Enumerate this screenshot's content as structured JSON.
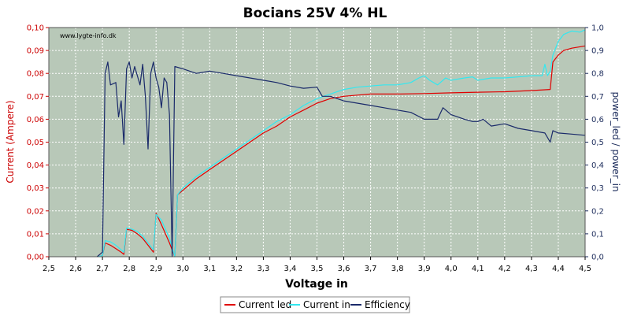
{
  "chart_data": {
    "type": "line",
    "title": "Bocians 25V 4% HL",
    "watermark": "www.lygte-info.dk",
    "xlabel": "Voltage in",
    "ylabel_left": "Current (Ampere)",
    "ylabel_right": "power_led / power_in",
    "xlim": [
      2.5,
      4.5
    ],
    "ylim_left": [
      0,
      0.1
    ],
    "ylim_right": [
      0,
      1
    ],
    "x_ticks": [
      "2,5",
      "2,6",
      "2,7",
      "2,8",
      "2,9",
      "3,0",
      "3,1",
      "3,2",
      "3,3",
      "3,4",
      "3,5",
      "3,6",
      "3,7",
      "3,8",
      "3,9",
      "4,0",
      "4,1",
      "4,2",
      "4,3",
      "4,4",
      "4,5"
    ],
    "y_left_ticks": [
      "0,00",
      "0,01",
      "0,02",
      "0,03",
      "0,04",
      "0,05",
      "0,06",
      "0,07",
      "0,08",
      "0,09",
      "0,10"
    ],
    "y_right_ticks": [
      "0,0",
      "0,1",
      "0,2",
      "0,3",
      "0,4",
      "0,5",
      "0,6",
      "0,7",
      "0,8",
      "0,9",
      "1,0"
    ],
    "grid": true,
    "legend_position": "bottom",
    "colors": {
      "plot_bg": "#b8c8b8",
      "grid": "#ffffff",
      "left_axis": "#cc0000",
      "right_axis": "#1a2a5a",
      "current_led": "#e00000",
      "current_in": "#33e8f0",
      "efficiency": "#1a2a6a"
    },
    "series": [
      {
        "name": "Current led",
        "axis": "left",
        "color": "#e00000",
        "points": [
          [
            2.68,
            0.0
          ],
          [
            2.7,
            0.0005
          ],
          [
            2.71,
            0.006
          ],
          [
            2.73,
            0.005
          ],
          [
            2.75,
            0.0035
          ],
          [
            2.77,
            0.002
          ],
          [
            2.78,
            0.001
          ],
          [
            2.79,
            0.012
          ],
          [
            2.81,
            0.0115
          ],
          [
            2.83,
            0.01
          ],
          [
            2.85,
            0.008
          ],
          [
            2.87,
            0.005
          ],
          [
            2.89,
            0.002
          ],
          [
            2.9,
            0.019
          ],
          [
            2.92,
            0.014
          ],
          [
            2.95,
            0.006
          ],
          [
            2.97,
            0.0
          ],
          [
            2.98,
            0.027
          ],
          [
            3.0,
            0.029
          ],
          [
            3.05,
            0.034
          ],
          [
            3.1,
            0.038
          ],
          [
            3.15,
            0.042
          ],
          [
            3.2,
            0.046
          ],
          [
            3.25,
            0.05
          ],
          [
            3.3,
            0.054
          ],
          [
            3.35,
            0.057
          ],
          [
            3.4,
            0.061
          ],
          [
            3.45,
            0.064
          ],
          [
            3.5,
            0.067
          ],
          [
            3.55,
            0.069
          ],
          [
            3.6,
            0.07
          ],
          [
            3.65,
            0.0705
          ],
          [
            3.7,
            0.071
          ],
          [
            3.8,
            0.071
          ],
          [
            3.9,
            0.0712
          ],
          [
            4.0,
            0.0715
          ],
          [
            4.1,
            0.0718
          ],
          [
            4.2,
            0.072
          ],
          [
            4.3,
            0.0725
          ],
          [
            4.37,
            0.073
          ],
          [
            4.38,
            0.085
          ],
          [
            4.4,
            0.088
          ],
          [
            4.42,
            0.09
          ],
          [
            4.45,
            0.091
          ],
          [
            4.5,
            0.092
          ]
        ]
      },
      {
        "name": "Current in",
        "axis": "left",
        "color": "#33e8f0",
        "points": [
          [
            2.68,
            0.0
          ],
          [
            2.7,
            0.0005
          ],
          [
            2.71,
            0.007
          ],
          [
            2.73,
            0.0065
          ],
          [
            2.75,
            0.005
          ],
          [
            2.77,
            0.003
          ],
          [
            2.78,
            0.002
          ],
          [
            2.79,
            0.0125
          ],
          [
            2.81,
            0.012
          ],
          [
            2.83,
            0.011
          ],
          [
            2.85,
            0.009
          ],
          [
            2.87,
            0.006
          ],
          [
            2.89,
            0.003
          ],
          [
            2.9,
            0.0185
          ],
          [
            2.92,
            0.016
          ],
          [
            2.95,
            0.008
          ],
          [
            2.97,
            0.0
          ],
          [
            2.98,
            0.027
          ],
          [
            3.0,
            0.03
          ],
          [
            3.05,
            0.035
          ],
          [
            3.1,
            0.039
          ],
          [
            3.15,
            0.043
          ],
          [
            3.2,
            0.047
          ],
          [
            3.25,
            0.051
          ],
          [
            3.3,
            0.055
          ],
          [
            3.35,
            0.059
          ],
          [
            3.4,
            0.062
          ],
          [
            3.45,
            0.066
          ],
          [
            3.5,
            0.069
          ],
          [
            3.55,
            0.071
          ],
          [
            3.6,
            0.073
          ],
          [
            3.65,
            0.074
          ],
          [
            3.7,
            0.0745
          ],
          [
            3.75,
            0.075
          ],
          [
            3.8,
            0.075
          ],
          [
            3.85,
            0.076
          ],
          [
            3.88,
            0.078
          ],
          [
            3.9,
            0.079
          ],
          [
            3.92,
            0.077
          ],
          [
            3.95,
            0.075
          ],
          [
            3.98,
            0.078
          ],
          [
            4.0,
            0.077
          ],
          [
            4.05,
            0.078
          ],
          [
            4.08,
            0.0785
          ],
          [
            4.1,
            0.077
          ],
          [
            4.15,
            0.078
          ],
          [
            4.2,
            0.078
          ],
          [
            4.25,
            0.0785
          ],
          [
            4.3,
            0.079
          ],
          [
            4.34,
            0.079
          ],
          [
            4.35,
            0.084
          ],
          [
            4.36,
            0.079
          ],
          [
            4.37,
            0.081
          ],
          [
            4.38,
            0.088
          ],
          [
            4.4,
            0.094
          ],
          [
            4.42,
            0.097
          ],
          [
            4.45,
            0.0985
          ],
          [
            4.48,
            0.098
          ],
          [
            4.5,
            0.099
          ]
        ]
      },
      {
        "name": "Efficiency",
        "axis": "right",
        "color": "#1a2a6a",
        "points": [
          [
            2.68,
            0.0
          ],
          [
            2.7,
            0.02
          ],
          [
            2.71,
            0.8
          ],
          [
            2.72,
            0.85
          ],
          [
            2.73,
            0.75
          ],
          [
            2.75,
            0.76
          ],
          [
            2.76,
            0.61
          ],
          [
            2.77,
            0.68
          ],
          [
            2.78,
            0.49
          ],
          [
            2.79,
            0.82
          ],
          [
            2.8,
            0.85
          ],
          [
            2.81,
            0.78
          ],
          [
            2.82,
            0.83
          ],
          [
            2.84,
            0.75
          ],
          [
            2.85,
            0.84
          ],
          [
            2.86,
            0.7
          ],
          [
            2.87,
            0.47
          ],
          [
            2.88,
            0.8
          ],
          [
            2.89,
            0.85
          ],
          [
            2.9,
            0.78
          ],
          [
            2.91,
            0.74
          ],
          [
            2.92,
            0.65
          ],
          [
            2.93,
            0.78
          ],
          [
            2.94,
            0.76
          ],
          [
            2.95,
            0.62
          ],
          [
            2.96,
            0.0
          ],
          [
            2.97,
            0.83
          ],
          [
            3.0,
            0.82
          ],
          [
            3.05,
            0.8
          ],
          [
            3.1,
            0.81
          ],
          [
            3.15,
            0.8
          ],
          [
            3.2,
            0.79
          ],
          [
            3.25,
            0.78
          ],
          [
            3.3,
            0.77
          ],
          [
            3.35,
            0.76
          ],
          [
            3.4,
            0.745
          ],
          [
            3.45,
            0.735
          ],
          [
            3.5,
            0.74
          ],
          [
            3.52,
            0.7
          ],
          [
            3.55,
            0.7
          ],
          [
            3.6,
            0.68
          ],
          [
            3.65,
            0.67
          ],
          [
            3.7,
            0.66
          ],
          [
            3.75,
            0.65
          ],
          [
            3.8,
            0.64
          ],
          [
            3.85,
            0.63
          ],
          [
            3.9,
            0.6
          ],
          [
            3.95,
            0.6
          ],
          [
            3.97,
            0.65
          ],
          [
            4.0,
            0.62
          ],
          [
            4.05,
            0.6
          ],
          [
            4.08,
            0.59
          ],
          [
            4.1,
            0.59
          ],
          [
            4.12,
            0.6
          ],
          [
            4.15,
            0.57
          ],
          [
            4.2,
            0.58
          ],
          [
            4.25,
            0.56
          ],
          [
            4.3,
            0.55
          ],
          [
            4.35,
            0.54
          ],
          [
            4.37,
            0.5
          ],
          [
            4.38,
            0.55
          ],
          [
            4.4,
            0.54
          ],
          [
            4.45,
            0.535
          ],
          [
            4.5,
            0.53
          ]
        ]
      }
    ]
  }
}
